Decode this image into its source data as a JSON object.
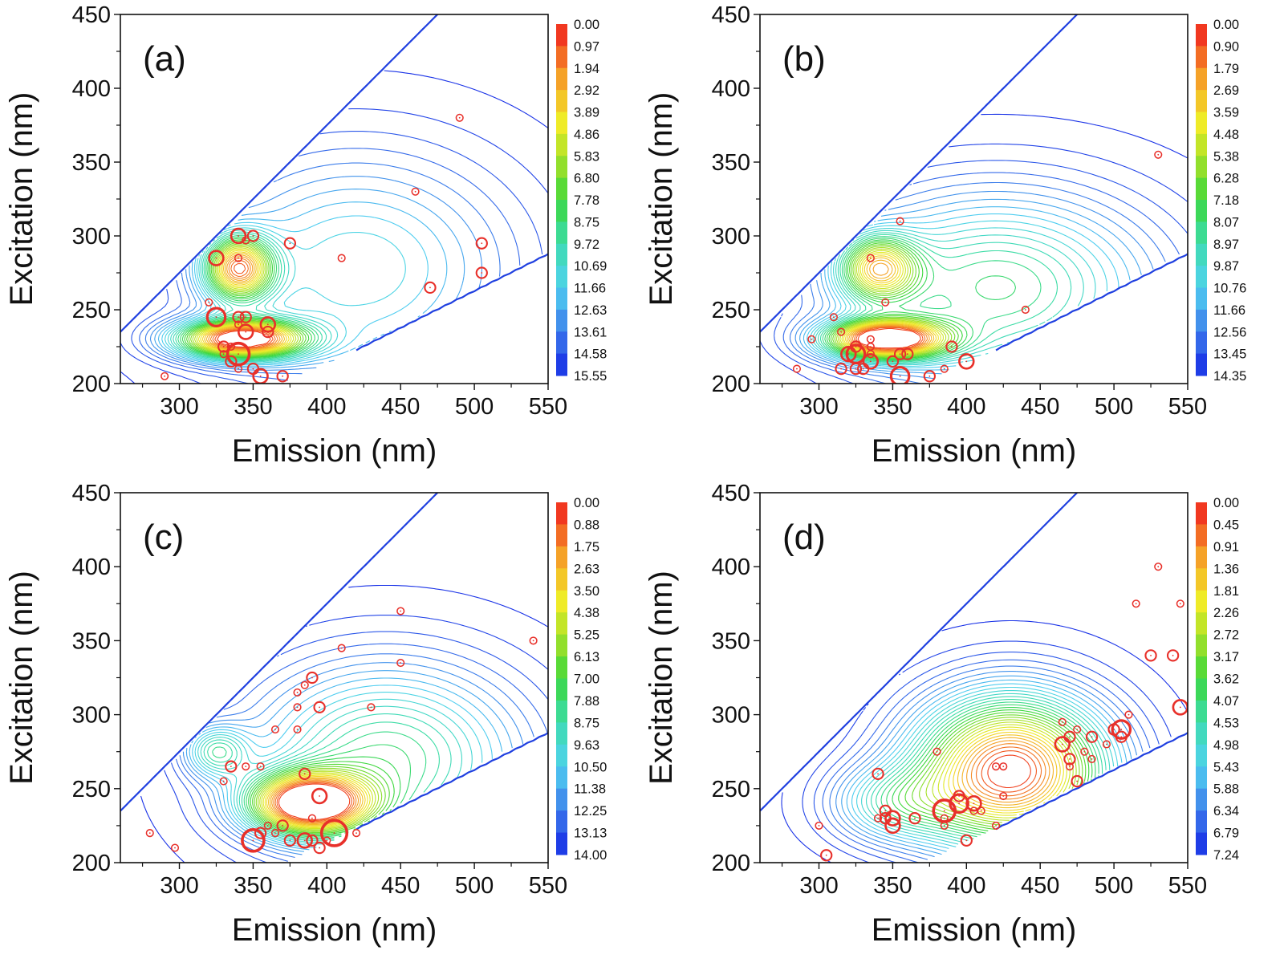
{
  "chart_data": [
    {
      "type": "heatmap",
      "panel_label": "(a)",
      "xlabel": "Emission (nm)",
      "ylabel": "Excitation (nm)",
      "xlim": [
        260,
        550
      ],
      "ylim": [
        200,
        450
      ],
      "xticks": [
        "300",
        "350",
        "400",
        "450",
        "500",
        "550"
      ],
      "yticks": [
        "200",
        "250",
        "300",
        "350",
        "400",
        "450"
      ],
      "colorbar": [
        "0.00",
        "0.97",
        "1.94",
        "2.92",
        "3.89",
        "4.86",
        "5.83",
        "6.80",
        "7.78",
        "8.75",
        "9.72",
        "10.69",
        "11.66",
        "12.63",
        "13.61",
        "14.58",
        "15.55"
      ],
      "peaks": [
        {
          "em": 340,
          "ex": 278,
          "amp": 0.78,
          "sx": 16,
          "sy": 15
        },
        {
          "em": 342,
          "ex": 230,
          "amp": 1.0,
          "sx": 30,
          "sy": 9
        },
        {
          "em": 420,
          "ex": 278,
          "amp": 0.3,
          "sx": 75,
          "sy": 55
        }
      ],
      "max": 15.55,
      "points": [
        {
          "em": 325,
          "ex": 285,
          "s": 3
        },
        {
          "em": 340,
          "ex": 300,
          "s": 3
        },
        {
          "em": 345,
          "ex": 297,
          "s": 1
        },
        {
          "em": 350,
          "ex": 300,
          "s": 2
        },
        {
          "em": 375,
          "ex": 295,
          "s": 2
        },
        {
          "em": 340,
          "ex": 285,
          "s": 1
        },
        {
          "em": 410,
          "ex": 285,
          "s": 1
        },
        {
          "em": 490,
          "ex": 380,
          "s": 1
        },
        {
          "em": 460,
          "ex": 330,
          "s": 1
        },
        {
          "em": 505,
          "ex": 295,
          "s": 2
        },
        {
          "em": 505,
          "ex": 275,
          "s": 2
        },
        {
          "em": 470,
          "ex": 265,
          "s": 2
        },
        {
          "em": 320,
          "ex": 255,
          "s": 1
        },
        {
          "em": 325,
          "ex": 245,
          "s": 4
        },
        {
          "em": 340,
          "ex": 245,
          "s": 2
        },
        {
          "em": 345,
          "ex": 245,
          "s": 2
        },
        {
          "em": 340,
          "ex": 240,
          "s": 1
        },
        {
          "em": 345,
          "ex": 235,
          "s": 3
        },
        {
          "em": 360,
          "ex": 240,
          "s": 3
        },
        {
          "em": 360,
          "ex": 235,
          "s": 2
        },
        {
          "em": 330,
          "ex": 225,
          "s": 2
        },
        {
          "em": 335,
          "ex": 225,
          "s": 1
        },
        {
          "em": 330,
          "ex": 220,
          "s": 1
        },
        {
          "em": 340,
          "ex": 220,
          "s": 5
        },
        {
          "em": 335,
          "ex": 215,
          "s": 2
        },
        {
          "em": 340,
          "ex": 210,
          "s": 1
        },
        {
          "em": 350,
          "ex": 210,
          "s": 2
        },
        {
          "em": 355,
          "ex": 205,
          "s": 3
        },
        {
          "em": 370,
          "ex": 205,
          "s": 2
        },
        {
          "em": 290,
          "ex": 205,
          "s": 1
        }
      ]
    },
    {
      "type": "heatmap",
      "panel_label": "(b)",
      "xlabel": "Emission (nm)",
      "ylabel": "Excitation (nm)",
      "xlim": [
        260,
        550
      ],
      "ylim": [
        200,
        450
      ],
      "xticks": [
        "300",
        "350",
        "400",
        "450",
        "500",
        "550"
      ],
      "yticks": [
        "200",
        "250",
        "300",
        "350",
        "400",
        "450"
      ],
      "colorbar": [
        "0.00",
        "0.90",
        "1.79",
        "2.69",
        "3.59",
        "4.48",
        "5.38",
        "6.28",
        "7.18",
        "8.07",
        "8.97",
        "9.87",
        "10.76",
        "11.66",
        "12.56",
        "13.45",
        "14.35"
      ],
      "peaks": [
        {
          "em": 340,
          "ex": 278,
          "amp": 0.62,
          "sx": 18,
          "sy": 15
        },
        {
          "em": 345,
          "ex": 230,
          "amp": 1.0,
          "sx": 28,
          "sy": 9
        },
        {
          "em": 420,
          "ex": 265,
          "amp": 0.45,
          "sx": 75,
          "sy": 45
        }
      ],
      "max": 14.35,
      "points": [
        {
          "em": 355,
          "ex": 310,
          "s": 1
        },
        {
          "em": 335,
          "ex": 285,
          "s": 1
        },
        {
          "em": 345,
          "ex": 255,
          "s": 1
        },
        {
          "em": 440,
          "ex": 250,
          "s": 1
        },
        {
          "em": 530,
          "ex": 355,
          "s": 1
        },
        {
          "em": 310,
          "ex": 245,
          "s": 1
        },
        {
          "em": 295,
          "ex": 230,
          "s": 1
        },
        {
          "em": 315,
          "ex": 235,
          "s": 1
        },
        {
          "em": 335,
          "ex": 230,
          "s": 1
        },
        {
          "em": 320,
          "ex": 220,
          "s": 3
        },
        {
          "em": 325,
          "ex": 225,
          "s": 2
        },
        {
          "em": 325,
          "ex": 220,
          "s": 4
        },
        {
          "em": 335,
          "ex": 225,
          "s": 1
        },
        {
          "em": 335,
          "ex": 220,
          "s": 1
        },
        {
          "em": 335,
          "ex": 215,
          "s": 3
        },
        {
          "em": 330,
          "ex": 210,
          "s": 2
        },
        {
          "em": 325,
          "ex": 210,
          "s": 2
        },
        {
          "em": 315,
          "ex": 210,
          "s": 2
        },
        {
          "em": 350,
          "ex": 215,
          "s": 2
        },
        {
          "em": 355,
          "ex": 220,
          "s": 2
        },
        {
          "em": 360,
          "ex": 220,
          "s": 2
        },
        {
          "em": 355,
          "ex": 205,
          "s": 4
        },
        {
          "em": 375,
          "ex": 205,
          "s": 2
        },
        {
          "em": 390,
          "ex": 225,
          "s": 2
        },
        {
          "em": 400,
          "ex": 215,
          "s": 3
        },
        {
          "em": 385,
          "ex": 210,
          "s": 1
        },
        {
          "em": 285,
          "ex": 210,
          "s": 1
        }
      ]
    },
    {
      "type": "heatmap",
      "panel_label": "(c)",
      "xlabel": "Emission (nm)",
      "ylabel": "Excitation (nm)",
      "xlim": [
        260,
        550
      ],
      "ylim": [
        200,
        450
      ],
      "xticks": [
        "300",
        "350",
        "400",
        "450",
        "500",
        "550"
      ],
      "yticks": [
        "200",
        "250",
        "300",
        "350",
        "400",
        "450"
      ],
      "colorbar": [
        "0.00",
        "0.88",
        "1.75",
        "2.63",
        "3.50",
        "4.38",
        "5.25",
        "6.13",
        "7.00",
        "7.88",
        "8.75",
        "9.63",
        "10.50",
        "11.38",
        "12.25",
        "13.13",
        "14.00"
      ],
      "peaks": [
        {
          "em": 388,
          "ex": 240,
          "amp": 1.0,
          "sx": 28,
          "sy": 14
        },
        {
          "em": 325,
          "ex": 275,
          "amp": 0.33,
          "sx": 15,
          "sy": 12
        },
        {
          "em": 440,
          "ex": 270,
          "amp": 0.45,
          "sx": 65,
          "sy": 45
        }
      ],
      "max": 14.0,
      "points": [
        {
          "em": 450,
          "ex": 370,
          "s": 1
        },
        {
          "em": 410,
          "ex": 345,
          "s": 1
        },
        {
          "em": 450,
          "ex": 335,
          "s": 1
        },
        {
          "em": 540,
          "ex": 350,
          "s": 1
        },
        {
          "em": 390,
          "ex": 325,
          "s": 2
        },
        {
          "em": 385,
          "ex": 320,
          "s": 1
        },
        {
          "em": 380,
          "ex": 315,
          "s": 1
        },
        {
          "em": 380,
          "ex": 305,
          "s": 1
        },
        {
          "em": 395,
          "ex": 305,
          "s": 2
        },
        {
          "em": 430,
          "ex": 305,
          "s": 1
        },
        {
          "em": 365,
          "ex": 290,
          "s": 1
        },
        {
          "em": 380,
          "ex": 290,
          "s": 1
        },
        {
          "em": 335,
          "ex": 265,
          "s": 2
        },
        {
          "em": 345,
          "ex": 265,
          "s": 1
        },
        {
          "em": 355,
          "ex": 265,
          "s": 1
        },
        {
          "em": 330,
          "ex": 255,
          "s": 1
        },
        {
          "em": 385,
          "ex": 260,
          "s": 2
        },
        {
          "em": 395,
          "ex": 245,
          "s": 3
        },
        {
          "em": 370,
          "ex": 225,
          "s": 2
        },
        {
          "em": 360,
          "ex": 225,
          "s": 1
        },
        {
          "em": 365,
          "ex": 220,
          "s": 1
        },
        {
          "em": 355,
          "ex": 220,
          "s": 2
        },
        {
          "em": 350,
          "ex": 215,
          "s": 5
        },
        {
          "em": 375,
          "ex": 215,
          "s": 2
        },
        {
          "em": 385,
          "ex": 215,
          "s": 3
        },
        {
          "em": 390,
          "ex": 215,
          "s": 2
        },
        {
          "em": 390,
          "ex": 230,
          "s": 1
        },
        {
          "em": 395,
          "ex": 210,
          "s": 2
        },
        {
          "em": 400,
          "ex": 215,
          "s": 1
        },
        {
          "em": 405,
          "ex": 220,
          "s": 6
        },
        {
          "em": 420,
          "ex": 220,
          "s": 1
        },
        {
          "em": 280,
          "ex": 220,
          "s": 1
        },
        {
          "em": 297,
          "ex": 210,
          "s": 1
        }
      ]
    },
    {
      "type": "heatmap",
      "panel_label": "(d)",
      "xlabel": "Emission (nm)",
      "ylabel": "Excitation (nm)",
      "xlim": [
        260,
        550
      ],
      "ylim": [
        200,
        450
      ],
      "xticks": [
        "300",
        "350",
        "400",
        "450",
        "500",
        "550"
      ],
      "yticks": [
        "200",
        "250",
        "300",
        "350",
        "400",
        "450"
      ],
      "colorbar": [
        "0.00",
        "0.45",
        "0.91",
        "1.36",
        "1.81",
        "2.26",
        "2.72",
        "3.17",
        "3.62",
        "4.07",
        "4.53",
        "4.98",
        "5.43",
        "5.88",
        "6.34",
        "6.79",
        "7.24"
      ],
      "peaks": [
        {
          "em": 430,
          "ex": 262,
          "amp": 1.0,
          "sx": 45,
          "sy": 35
        },
        {
          "em": 350,
          "ex": 240,
          "amp": 0.3,
          "sx": 30,
          "sy": 18
        }
      ],
      "max": 7.24,
      "points": [
        {
          "em": 530,
          "ex": 400,
          "s": 1
        },
        {
          "em": 515,
          "ex": 375,
          "s": 1
        },
        {
          "em": 545,
          "ex": 375,
          "s": 1
        },
        {
          "em": 525,
          "ex": 340,
          "s": 2
        },
        {
          "em": 540,
          "ex": 340,
          "s": 2
        },
        {
          "em": 545,
          "ex": 305,
          "s": 3
        },
        {
          "em": 510,
          "ex": 300,
          "s": 1
        },
        {
          "em": 500,
          "ex": 290,
          "s": 2
        },
        {
          "em": 505,
          "ex": 290,
          "s": 4
        },
        {
          "em": 505,
          "ex": 285,
          "s": 2
        },
        {
          "em": 495,
          "ex": 280,
          "s": 1
        },
        {
          "em": 485,
          "ex": 285,
          "s": 2
        },
        {
          "em": 480,
          "ex": 275,
          "s": 1
        },
        {
          "em": 485,
          "ex": 270,
          "s": 1
        },
        {
          "em": 465,
          "ex": 295,
          "s": 1
        },
        {
          "em": 465,
          "ex": 280,
          "s": 3
        },
        {
          "em": 470,
          "ex": 285,
          "s": 2
        },
        {
          "em": 475,
          "ex": 290,
          "s": 1
        },
        {
          "em": 470,
          "ex": 270,
          "s": 2
        },
        {
          "em": 470,
          "ex": 265,
          "s": 1
        },
        {
          "em": 475,
          "ex": 255,
          "s": 2
        },
        {
          "em": 420,
          "ex": 265,
          "s": 1
        },
        {
          "em": 425,
          "ex": 265,
          "s": 1
        },
        {
          "em": 425,
          "ex": 245,
          "s": 1
        },
        {
          "em": 380,
          "ex": 275,
          "s": 1
        },
        {
          "em": 340,
          "ex": 260,
          "s": 2
        },
        {
          "em": 345,
          "ex": 235,
          "s": 2
        },
        {
          "em": 340,
          "ex": 230,
          "s": 1
        },
        {
          "em": 345,
          "ex": 230,
          "s": 2
        },
        {
          "em": 350,
          "ex": 230,
          "s": 3
        },
        {
          "em": 350,
          "ex": 225,
          "s": 3
        },
        {
          "em": 365,
          "ex": 230,
          "s": 2
        },
        {
          "em": 385,
          "ex": 235,
          "s": 5
        },
        {
          "em": 385,
          "ex": 230,
          "s": 1
        },
        {
          "em": 385,
          "ex": 225,
          "s": 1
        },
        {
          "em": 395,
          "ex": 240,
          "s": 4
        },
        {
          "em": 395,
          "ex": 245,
          "s": 2
        },
        {
          "em": 405,
          "ex": 240,
          "s": 3
        },
        {
          "em": 405,
          "ex": 235,
          "s": 1
        },
        {
          "em": 410,
          "ex": 235,
          "s": 1
        },
        {
          "em": 400,
          "ex": 215,
          "s": 2
        },
        {
          "em": 420,
          "ex": 225,
          "s": 1
        },
        {
          "em": 300,
          "ex": 225,
          "s": 1
        },
        {
          "em": 305,
          "ex": 205,
          "s": 2
        }
      ]
    }
  ]
}
